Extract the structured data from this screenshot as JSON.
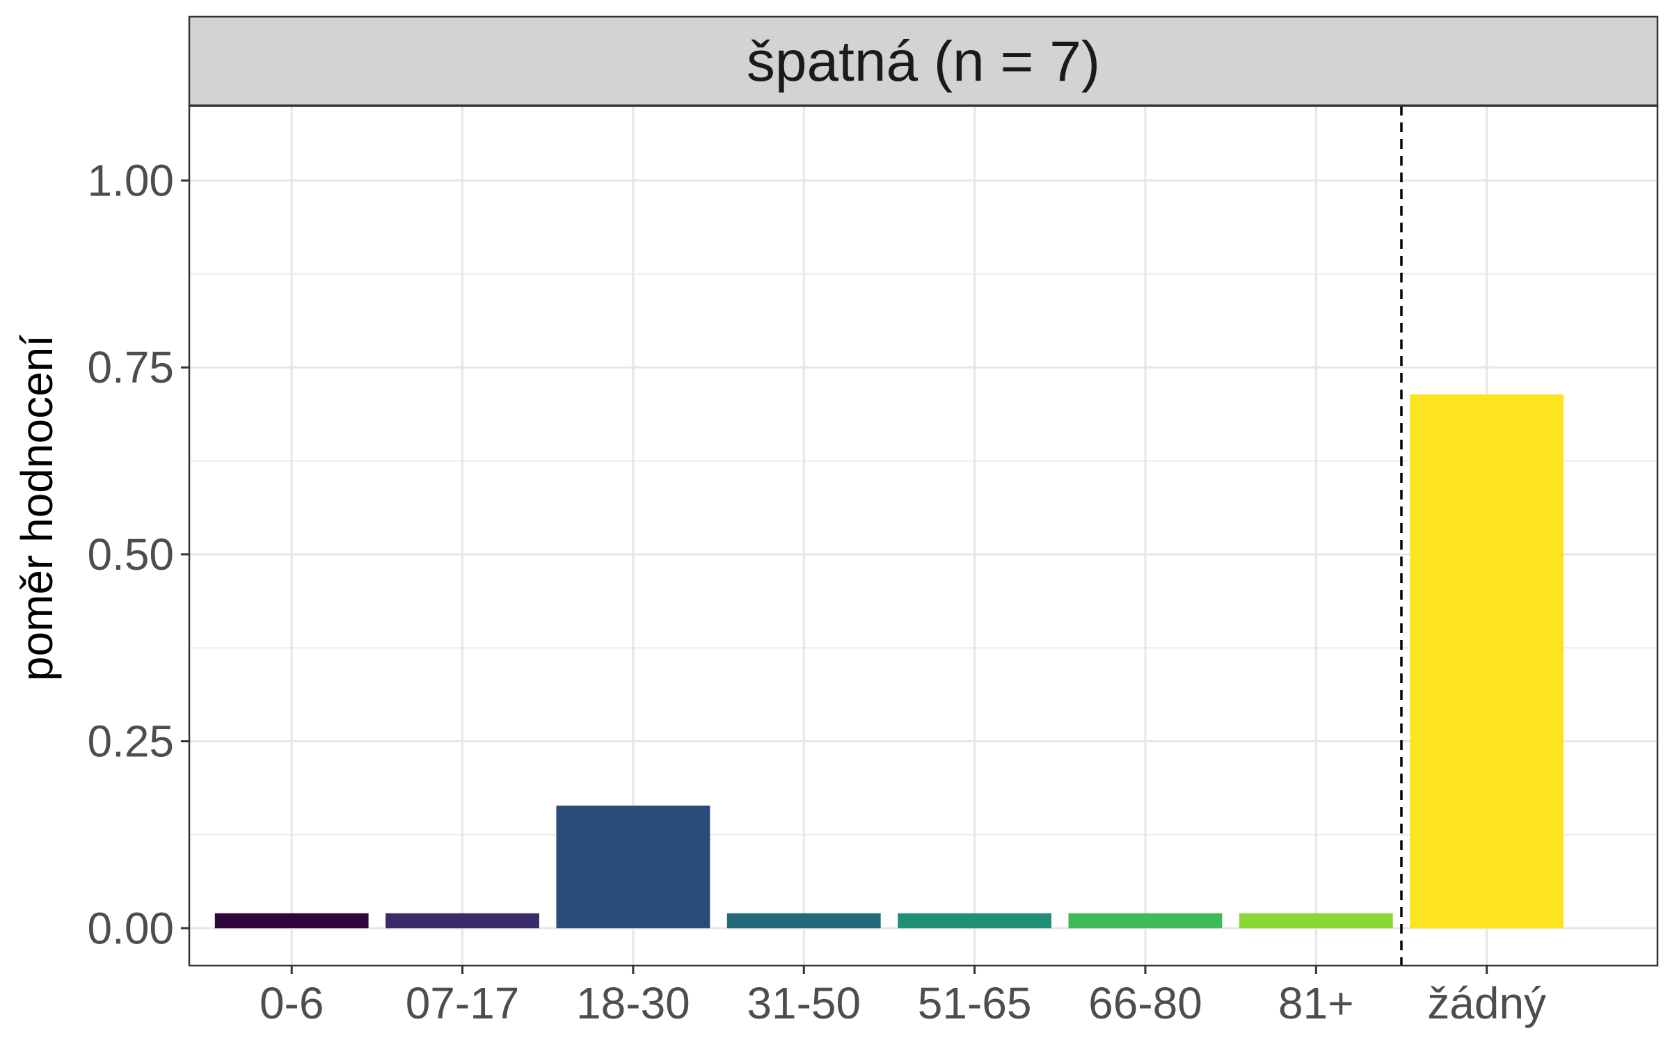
{
  "chart_data": {
    "type": "bar",
    "facet_title": "špatná (n = 7)",
    "ylabel": "poměr hodnocení",
    "xlabel": "",
    "categories": [
      "0-6",
      "07-17",
      "18-30",
      "31-50",
      "51-65",
      "66-80",
      "81+",
      "žádný"
    ],
    "values": [
      0.02,
      0.02,
      0.164,
      0.02,
      0.02,
      0.02,
      0.02,
      0.714
    ],
    "colors": [
      "#30053a",
      "#3a2b6b",
      "#2a4a78",
      "#236978",
      "#1f8f78",
      "#3fba56",
      "#8bd733",
      "#fce41f"
    ],
    "ylim": [
      -0.05,
      1.1
    ],
    "y_ticks": [
      0.0,
      0.25,
      0.5,
      0.75,
      1.0
    ],
    "y_tick_labels": [
      "0.00",
      "0.25",
      "0.50",
      "0.75",
      "1.00"
    ],
    "grid": true,
    "legend": "none",
    "reference_line": {
      "between_categories": [
        "81+",
        "žádný"
      ],
      "style": "dashed",
      "color": "#000000"
    }
  }
}
